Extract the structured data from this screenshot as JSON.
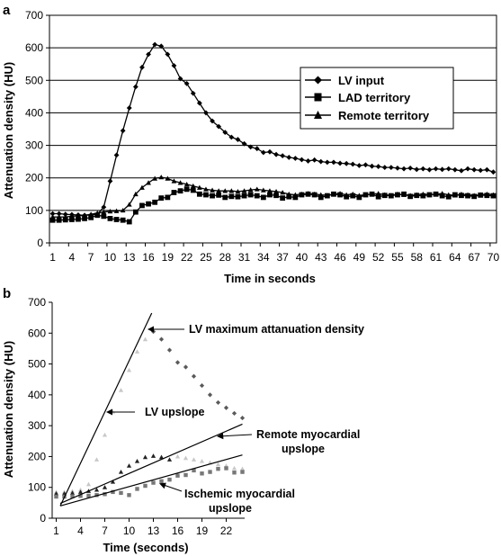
{
  "chart_data": [
    {
      "panel_label": "a",
      "type": "line",
      "title": "",
      "xlabel": "Time in seconds",
      "ylabel": "Attenuation density (HU)",
      "ylim": [
        0,
        700
      ],
      "yticks": [
        0,
        100,
        200,
        300,
        400,
        500,
        600,
        700
      ],
      "xticks": [
        1,
        4,
        7,
        10,
        13,
        16,
        19,
        22,
        25,
        28,
        31,
        34,
        37,
        40,
        43,
        46,
        49,
        52,
        55,
        58,
        61,
        64,
        67,
        70
      ],
      "xlim": [
        1,
        70
      ],
      "grid": "horizontal",
      "legend_position": "right",
      "x": [
        1,
        2,
        3,
        4,
        5,
        6,
        7,
        8,
        9,
        10,
        11,
        12,
        13,
        14,
        15,
        16,
        17,
        18,
        19,
        20,
        21,
        22,
        23,
        24,
        25,
        26,
        27,
        28,
        29,
        30,
        31,
        32,
        33,
        34,
        35,
        36,
        37,
        38,
        39,
        40,
        41,
        42,
        43,
        44,
        45,
        46,
        47,
        48,
        49,
        50,
        51,
        52,
        53,
        54,
        55,
        56,
        57,
        58,
        59,
        60,
        61,
        62,
        63,
        64,
        65,
        66,
        67,
        68,
        69,
        70
      ],
      "series": [
        {
          "name": "LV input",
          "marker": "diamond",
          "values": [
            90,
            90,
            88,
            87,
            86,
            85,
            86,
            88,
            110,
            190,
            270,
            345,
            415,
            480,
            540,
            580,
            610,
            605,
            580,
            545,
            505,
            490,
            460,
            430,
            400,
            375,
            358,
            340,
            325,
            318,
            305,
            295,
            290,
            278,
            280,
            272,
            268,
            263,
            260,
            256,
            252,
            255,
            250,
            248,
            248,
            245,
            244,
            242,
            238,
            240,
            236,
            235,
            232,
            232,
            230,
            228,
            230,
            226,
            228,
            225,
            228,
            226,
            228,
            225,
            222,
            228,
            225,
            223,
            225,
            218
          ]
        },
        {
          "name": "LAD territory",
          "marker": "square",
          "values": [
            70,
            70,
            71,
            72,
            73,
            75,
            78,
            85,
            82,
            75,
            72,
            70,
            65,
            95,
            115,
            120,
            125,
            138,
            140,
            155,
            160,
            165,
            162,
            150,
            148,
            145,
            147,
            140,
            143,
            142,
            145,
            148,
            145,
            140,
            148,
            146,
            138,
            142,
            140,
            148,
            150,
            148,
            140,
            145,
            150,
            148,
            142,
            145,
            140,
            148,
            150,
            142,
            146,
            145,
            148,
            150,
            143,
            146,
            145,
            148,
            150,
            145,
            142,
            148,
            146,
            145,
            143,
            147,
            146,
            145
          ]
        },
        {
          "name": "Remote territory",
          "marker": "triangle",
          "values": [
            80,
            80,
            80,
            82,
            83,
            85,
            88,
            92,
            95,
            97,
            98,
            100,
            118,
            150,
            170,
            185,
            198,
            202,
            198,
            190,
            185,
            180,
            175,
            170,
            165,
            162,
            160,
            160,
            160,
            158,
            160,
            163,
            165,
            162,
            160,
            158,
            155,
            150,
            148,
            150,
            152,
            150,
            148,
            146,
            150,
            152,
            148,
            150,
            146,
            148,
            150,
            152,
            148,
            146,
            150,
            148,
            146,
            148,
            150,
            148,
            150,
            152,
            148,
            146,
            150,
            148,
            146,
            148,
            150,
            148
          ]
        }
      ]
    },
    {
      "panel_label": "b",
      "type": "scatter",
      "title": "",
      "xlabel": "Time (seconds)",
      "ylabel": "Attenuation density (HU)",
      "ylim": [
        0,
        700
      ],
      "xlim": [
        1,
        24
      ],
      "yticks": [
        0,
        100,
        200,
        300,
        400,
        500,
        600,
        700
      ],
      "xticks": [
        1,
        4,
        7,
        10,
        13,
        16,
        19,
        22
      ],
      "grid": "none",
      "series": [
        {
          "name": "LV",
          "color": "#c8c8c8",
          "x": [
            1,
            2,
            3,
            4,
            5,
            6,
            7,
            8,
            9,
            10,
            11,
            12,
            13
          ],
          "values": [
            85,
            85,
            88,
            92,
            110,
            190,
            270,
            345,
            415,
            480,
            540,
            580,
            610
          ]
        },
        {
          "name": "LV",
          "marker": "diamond",
          "color": "#5a5a5a",
          "x": [
            13,
            14,
            15,
            16,
            17,
            18,
            19,
            20,
            21,
            22,
            23,
            24
          ],
          "values": [
            605,
            580,
            545,
            505,
            490,
            460,
            430,
            400,
            375,
            358,
            340,
            325
          ]
        },
        {
          "name": "Remote",
          "marker": "triangle",
          "color": "#222222",
          "x": [
            1,
            2,
            3,
            4,
            5,
            6,
            7,
            8,
            9,
            10,
            11,
            12,
            13,
            14,
            15
          ],
          "values": [
            80,
            80,
            82,
            85,
            88,
            92,
            100,
            118,
            150,
            170,
            185,
            198,
            202,
            198,
            190
          ]
        },
        {
          "name": "Remote",
          "marker": "triangle",
          "color": "#c8c8c8",
          "x": [
            16,
            17,
            18,
            19,
            20,
            21,
            22,
            23,
            24
          ],
          "values": [
            200,
            195,
            190,
            185,
            180,
            175,
            170,
            162,
            160
          ]
        },
        {
          "name": "Ischemic",
          "marker": "square",
          "color": "#777777",
          "x": [
            1,
            2,
            3,
            4,
            5,
            6,
            7,
            8,
            9,
            10,
            11,
            12,
            13,
            14,
            15,
            16,
            17,
            18,
            19,
            20,
            21,
            22,
            23,
            24
          ],
          "values": [
            70,
            70,
            71,
            72,
            73,
            75,
            78,
            85,
            82,
            75,
            95,
            105,
            115,
            120,
            125,
            138,
            140,
            155,
            145,
            150,
            160,
            162,
            148,
            150
          ]
        }
      ],
      "lines": [
        {
          "name": "LV upslope",
          "x": [
            1.5,
            12.8
          ],
          "values": [
            40,
            665
          ]
        },
        {
          "name": "Remote myocardial upslope",
          "x": [
            1.5,
            24
          ],
          "values": [
            48,
            305
          ]
        },
        {
          "name": "Ischemic myocardial upslope",
          "x": [
            1.5,
            24
          ],
          "values": [
            40,
            205
          ]
        }
      ],
      "annotations": [
        "LV maximum attanuation density",
        "LV upslope",
        "Remote myocardial",
        "upslope",
        "Ischemic myocardial",
        "upslope"
      ]
    }
  ]
}
